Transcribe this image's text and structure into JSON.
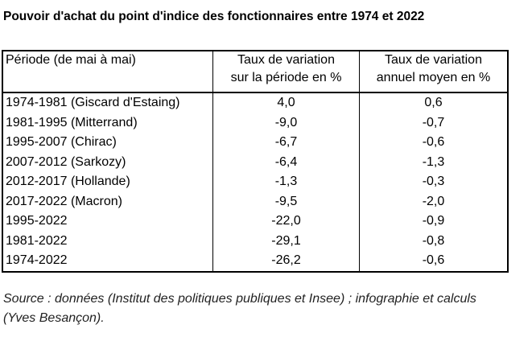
{
  "title": "Pouvoir d'achat du point d'indice des fonctionnaires entre 1974 et 2022",
  "table": {
    "header": [
      [
        "Période (de mai à mai)"
      ],
      [
        "Taux de variation",
        "sur la période en %"
      ],
      [
        "Taux de variation",
        "annuel moyen en %"
      ]
    ],
    "rows": [
      [
        "1974-1981 (Giscard d'Estaing)",
        "4,0",
        "0,6"
      ],
      [
        "1981-1995 (Mitterrand)",
        "-9,0",
        "-0,7"
      ],
      [
        "1995-2007 (Chirac)",
        "-6,7",
        "-0,6"
      ],
      [
        "2007-2012 (Sarkozy)",
        "-6,4",
        "-1,3"
      ],
      [
        "2012-2017 (Hollande)",
        "-1,3",
        "-0,3"
      ],
      [
        "2017-2022 (Macron)",
        "-9,5",
        "-2,0"
      ],
      [
        "1995-2022",
        "-22,0",
        "-0,9"
      ],
      [
        "1981-2022",
        "-29,1",
        "-0,8"
      ],
      [
        "1974-2022",
        "-26,2",
        "-0,6"
      ]
    ]
  },
  "source": "Source : données (Institut des politiques publiques et Insee) ; infographie et calculs (Yves Besançon)."
}
